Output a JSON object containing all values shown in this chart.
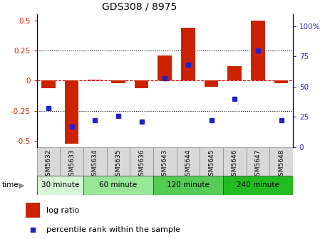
{
  "title": "GDS308 / 8975",
  "samples": [
    "GSM5632",
    "GSM5633",
    "GSM5634",
    "GSM5635",
    "GSM5636",
    "GSM5643",
    "GSM5644",
    "GSM5645",
    "GSM5646",
    "GSM5647",
    "GSM5648"
  ],
  "log_ratio": [
    -0.06,
    -0.52,
    0.01,
    -0.02,
    -0.06,
    0.21,
    0.44,
    -0.05,
    0.12,
    0.5,
    -0.02
  ],
  "percentile": [
    32,
    17,
    22,
    26,
    21,
    57,
    68,
    22,
    40,
    80,
    22
  ],
  "groups": [
    {
      "label": "30 minute",
      "start": 0,
      "end": 2
    },
    {
      "label": "60 minute",
      "start": 2,
      "end": 5
    },
    {
      "label": "120 minute",
      "start": 5,
      "end": 8
    },
    {
      "label": "240 minute",
      "start": 8,
      "end": 11
    }
  ],
  "group_colors": [
    "#d5f5d5",
    "#99e699",
    "#55cc55",
    "#22bb22"
  ],
  "ylim": [
    -0.55,
    0.55
  ],
  "yticks": [
    -0.5,
    -0.25,
    0,
    0.25,
    0.5
  ],
  "y2lim": [
    0,
    110
  ],
  "y2ticks": [
    0,
    25,
    50,
    75,
    100
  ],
  "bar_color": "#cc2200",
  "dot_color": "#2222cc",
  "bg_color": "#ffffff",
  "tick_label_color_left": "#cc2200",
  "tick_label_color_right": "#2222cc",
  "bar_width": 0.6,
  "xlabel_bg": "#d8d8d8"
}
